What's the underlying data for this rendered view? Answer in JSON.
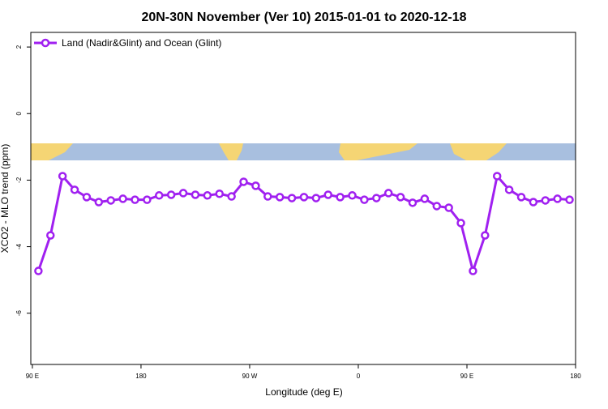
{
  "chart_data": {
    "type": "line",
    "title": "20N-30N November (Ver 10)   2015-01-01 to 2020-12-18",
    "xlabel": "Longitude (deg E)",
    "ylabel": "XCO2 - MLO trend (ppm)",
    "x": [
      95,
      105,
      115,
      125,
      135,
      145,
      155,
      165,
      175,
      185,
      195,
      205,
      215,
      225,
      235,
      245,
      255,
      265,
      275,
      285,
      295,
      305,
      315,
      325,
      335,
      345,
      355,
      365,
      375,
      385,
      395,
      405,
      415,
      425,
      435,
      445,
      455,
      465,
      475,
      485,
      495,
      505,
      515,
      525,
      535
    ],
    "series": [
      {
        "name": "Land (Nadir&Glint) and Ocean (Glint)",
        "color": "#a020f0",
        "values": [
          -4.73,
          -3.66,
          -1.88,
          -2.29,
          -2.51,
          -2.66,
          -2.61,
          -2.56,
          -2.59,
          -2.59,
          -2.46,
          -2.44,
          -2.39,
          -2.44,
          -2.46,
          -2.41,
          -2.49,
          -2.05,
          -2.17,
          -2.49,
          -2.51,
          -2.54,
          -2.51,
          -2.54,
          -2.44,
          -2.51,
          -2.46,
          -2.59,
          -2.54,
          -2.39,
          -2.51,
          -2.68,
          -2.56,
          -2.78,
          -2.83,
          -3.29,
          -4.73,
          -3.66,
          -1.88,
          -2.29,
          -2.51,
          -2.66,
          -2.61,
          -2.56,
          -2.59
        ]
      }
    ],
    "xlim": [
      88.7,
      540
    ],
    "xticks": [
      {
        "value": 90,
        "label": "90 E"
      },
      180,
      {
        "value": 270,
        "label": "90 W"
      },
      {
        "value": 360,
        "label": "0"
      },
      {
        "value": 450,
        "label": "90 E"
      },
      {
        "value": 540,
        "label": "180"
      }
    ],
    "ylim": [
      -7.54,
      2.44
    ],
    "yticks": [
      2,
      0,
      -2,
      -4,
      -6
    ],
    "legend": "top-left"
  }
}
